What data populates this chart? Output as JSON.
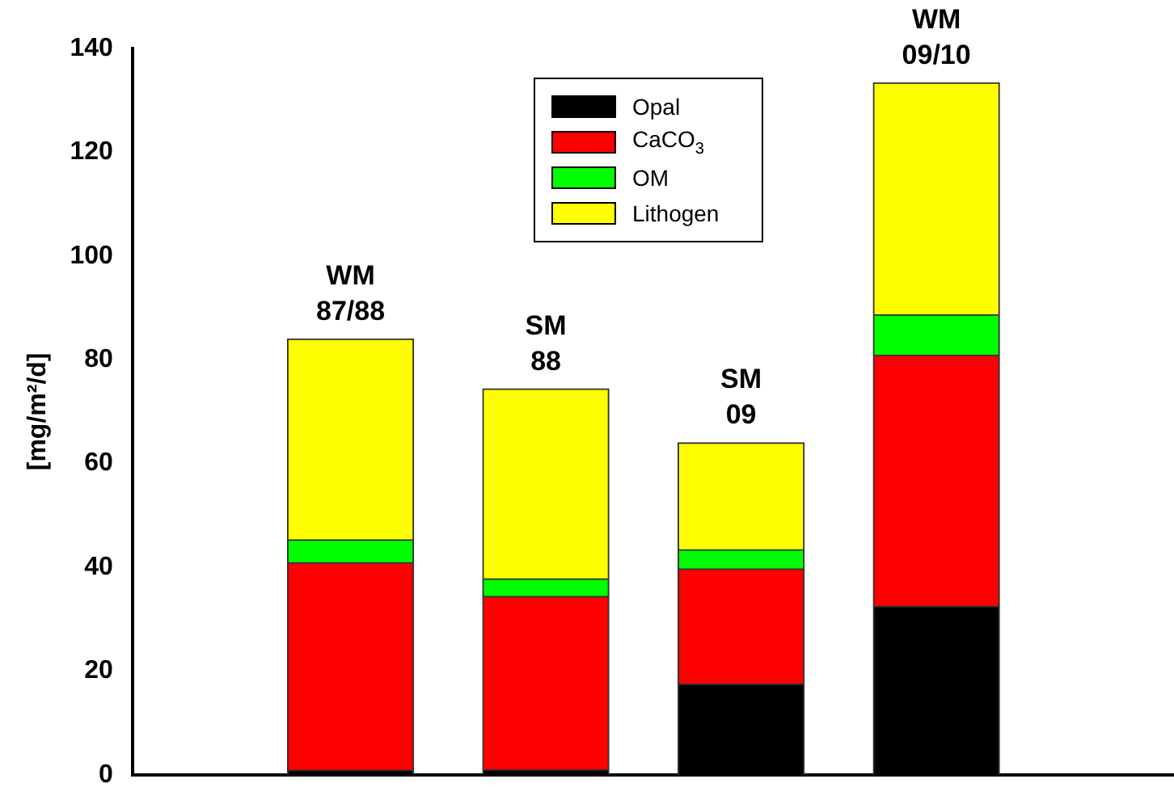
{
  "chart_data": {
    "type": "bar",
    "stacked": true,
    "ylabel": "[mg/m²/d]",
    "categories": [
      "WM\n87/88",
      "SM\n88",
      "SM\n09",
      "WM\n09/10"
    ],
    "series": [
      {
        "name": "Opal",
        "color": "#000000",
        "values": [
          0.9,
          1,
          17.5,
          32.5
        ]
      },
      {
        "name": "CaCO$_{3}$",
        "color": "#ff0000",
        "values": [
          40,
          33.4,
          22.2,
          48.4
        ]
      },
      {
        "name": "OM",
        "color": "#00ff00",
        "values": [
          4.4,
          3.4,
          3.7,
          7.8
        ]
      },
      {
        "name": "Lithogen",
        "color": "#ffff00",
        "values": [
          38.7,
          36.6,
          20.6,
          44.7
        ]
      }
    ],
    "ylim": [
      0,
      140
    ],
    "yticks": [
      0,
      20,
      40,
      60,
      80,
      100,
      120,
      140
    ],
    "grid": false,
    "legend": "top"
  }
}
